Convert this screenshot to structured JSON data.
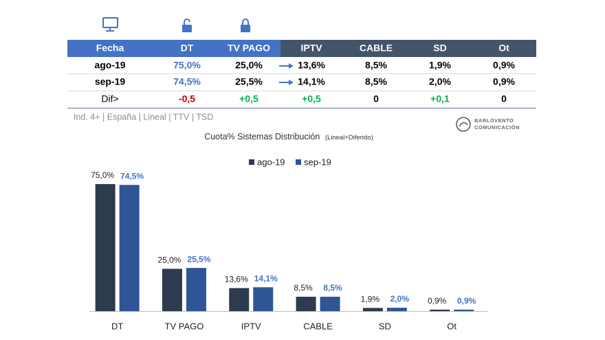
{
  "table": {
    "header": [
      "Fecha",
      "DT",
      "TV PAGO",
      "IPTV",
      "CABLE",
      "SD",
      "Ot"
    ],
    "rows": [
      [
        "ago-19",
        "75,0%",
        "25,0%",
        "13,6%",
        "8,5%",
        "1,9%",
        "0,9%"
      ],
      [
        "sep-19",
        "74,5%",
        "25,5%",
        "14,1%",
        "8,5%",
        "2,0%",
        "0,9%"
      ],
      [
        "Dif>",
        "-0,5",
        "+0,5",
        "+0,5",
        "0",
        "+0,1",
        "0"
      ]
    ]
  },
  "footnote": "Ind. 4+ | España | Lineal | TTV | TSD",
  "logo": {
    "line1": "BARLOVENTO",
    "line2": "COMUNICACIÓN"
  },
  "chart_data": {
    "type": "bar",
    "title": "Cuota% Sistemas Distribución",
    "subtitle": "(Lineal+Diferido)",
    "categories": [
      "DT",
      "TV PAGO",
      "IPTV",
      "CABLE",
      "SD",
      "Ot"
    ],
    "series": [
      {
        "name": "ago-19",
        "color": "#2e3a4e",
        "values": [
          75.0,
          25.0,
          13.6,
          8.5,
          1.9,
          0.9
        ],
        "value_labels": [
          "75,0%",
          "25,0%",
          "13,6%",
          "8,5%",
          "1,9%",
          "0,9%"
        ]
      },
      {
        "name": "sep-19",
        "color": "#2f5597",
        "values": [
          74.5,
          25.5,
          14.1,
          8.5,
          2.0,
          0.9
        ],
        "value_labels": [
          "74,5%",
          "25,5%",
          "14,1%",
          "8,5%",
          "2,0%",
          "0,9%"
        ]
      }
    ]
  }
}
